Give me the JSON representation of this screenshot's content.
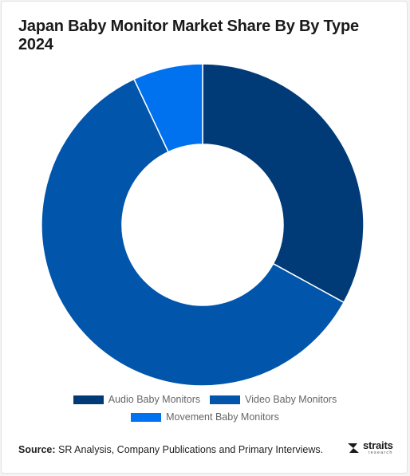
{
  "chart_data": {
    "type": "pie",
    "variant": "donut",
    "title": "Japan Baby Monitor Market Share By By Type 2024",
    "categories": [
      "Audio Baby Monitors",
      "Video Baby Monitors",
      "Movement Baby Monitors"
    ],
    "values": [
      33,
      60,
      7
    ],
    "unit": "%",
    "colors": [
      "#013b77",
      "#0155ab",
      "#0072f0"
    ],
    "legend_position": "bottom",
    "data_labels": false
  },
  "source": {
    "label": "Source:",
    "text": "SR Analysis, Company Publications and Primary Interviews."
  },
  "brand": {
    "name": "straits",
    "tagline": "research"
  }
}
